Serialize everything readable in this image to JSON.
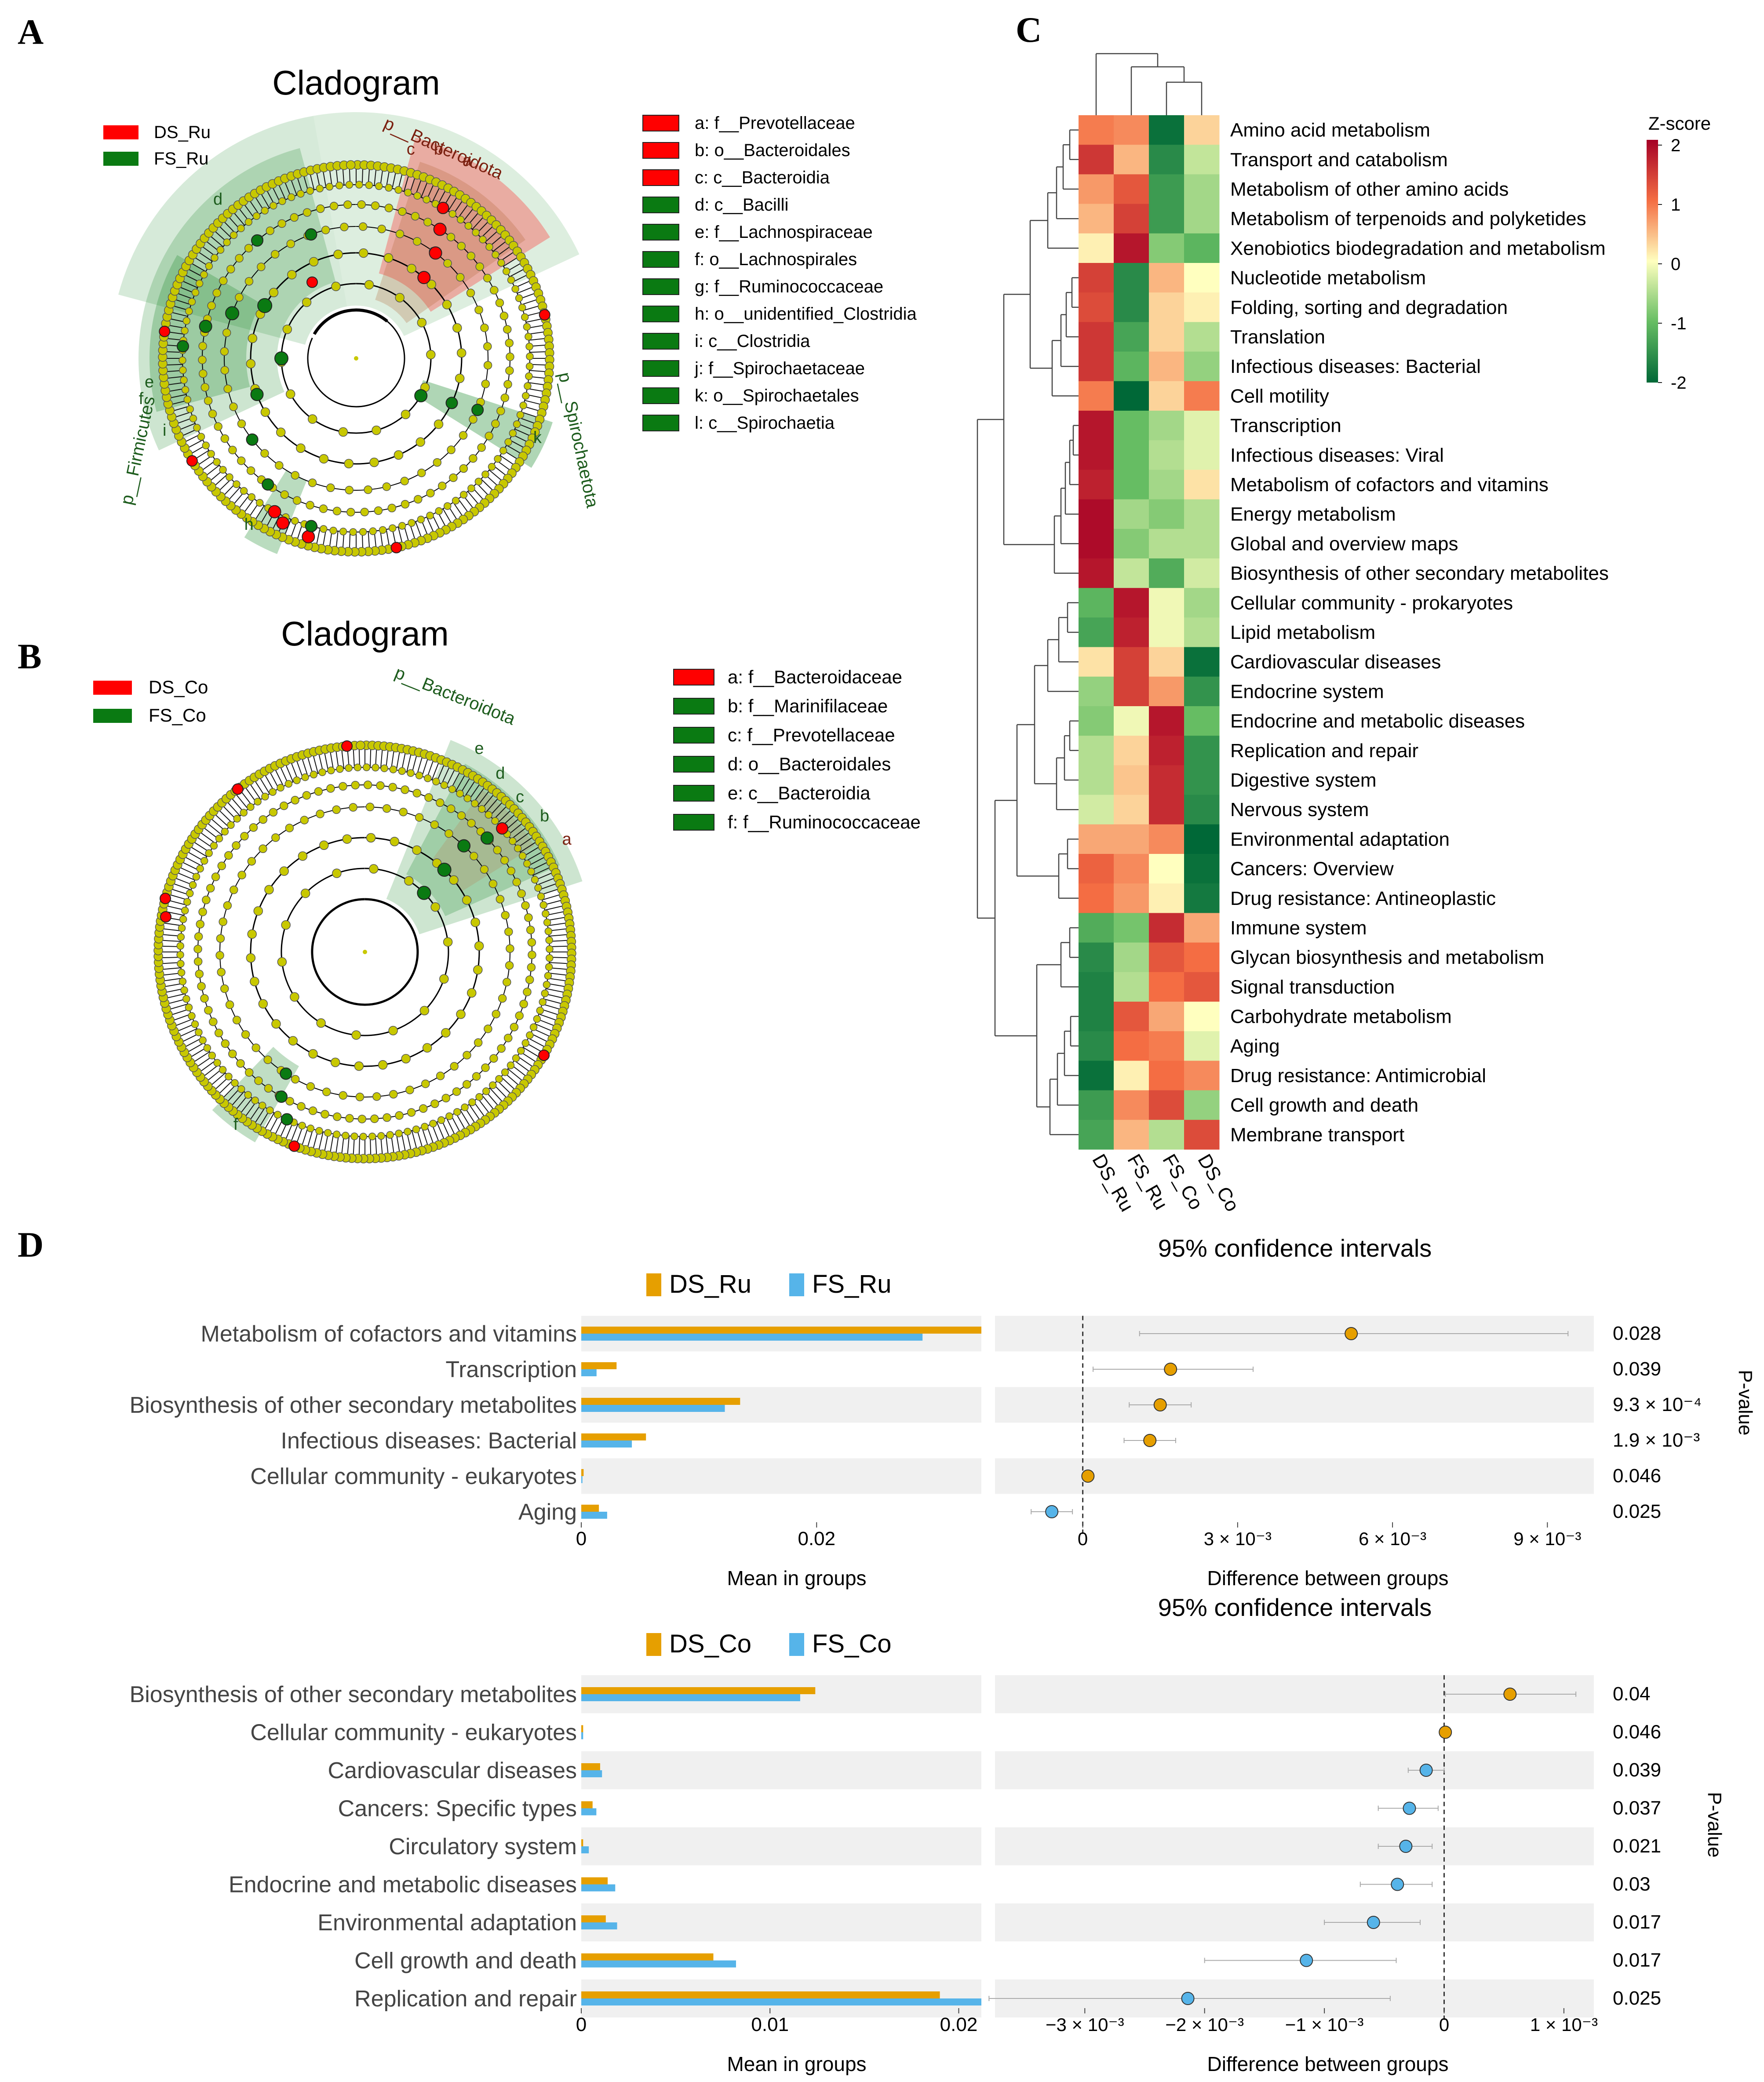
{
  "colors": {
    "red": "#ff0000",
    "green": "#0a7a12",
    "yellow": "#c8c800",
    "orange": "#e69f00",
    "blue": "#56b4e9",
    "stripe": "#f0f0f0",
    "label_brown": "#7b2010",
    "label_green": "#1d5c1d"
  },
  "panelA": {
    "letter": "A",
    "title": "Cladogram",
    "legend": [
      "DS_Ru",
      "FS_Ru"
    ],
    "clade_labels": [
      "p__Bacteroidota",
      "p__Firmicutes",
      "p__Spirochaetota"
    ],
    "node_letters": [
      "a",
      "b",
      "c",
      "d",
      "e",
      "f",
      "h",
      "i",
      "k"
    ],
    "key": [
      {
        "text": "a: f__Prevotellaceae",
        "group": "DS"
      },
      {
        "text": "b: o__Bacteroidales",
        "group": "DS"
      },
      {
        "text": "c: c__Bacteroidia",
        "group": "DS"
      },
      {
        "text": "d: c__Bacilli",
        "group": "FS"
      },
      {
        "text": "e: f__Lachnospiraceae",
        "group": "FS"
      },
      {
        "text": "f: o__Lachnospirales",
        "group": "FS"
      },
      {
        "text": "g: f__Ruminococcaceae",
        "group": "FS"
      },
      {
        "text": "h: o__unidentified_Clostridia",
        "group": "FS"
      },
      {
        "text": "i: c__Clostridia",
        "group": "FS"
      },
      {
        "text": "j: f__Spirochaetaceae",
        "group": "FS"
      },
      {
        "text": "k: o__Spirochaetales",
        "group": "FS"
      },
      {
        "text": "l: c__Spirochaetia",
        "group": "FS"
      }
    ]
  },
  "panelB": {
    "letter": "B",
    "title": "Cladogram",
    "legend": [
      "DS_Co",
      "FS_Co"
    ],
    "clade_label": "p__Bacteroidota",
    "node_letters": [
      "a",
      "b",
      "c",
      "d",
      "e",
      "f"
    ],
    "key": [
      {
        "text": "a: f__Bacteroidaceae",
        "group": "DS"
      },
      {
        "text": "b: f__Marinifilaceae",
        "group": "FS"
      },
      {
        "text": "c: f__Prevotellaceae",
        "group": "FS"
      },
      {
        "text": "d: o__Bacteroidales",
        "group": "FS"
      },
      {
        "text": "e: c__Bacteroidia",
        "group": "FS"
      },
      {
        "text": "f: f__Ruminococcaceae",
        "group": "FS"
      }
    ]
  },
  "panelC": {
    "letter": "C",
    "colorbar_title": "Z-score",
    "colorbar_ticks": [
      "2",
      "1",
      "0",
      "-1",
      "-2"
    ]
  },
  "panelD": {
    "letter": "D",
    "ci_title": "95% confidence intervals",
    "left_xlabel": "Mean in groups",
    "right_xlabel": "Difference between groups",
    "pvalue_label": "P-value",
    "top_legend": [
      "DS_Ru",
      "FS_Ru"
    ],
    "top_left_ticks": [
      "0",
      "0.02"
    ],
    "top_right_ticks": [
      "0",
      "3 × 10⁻³",
      "6 × 10⁻³",
      "9 × 10⁻³"
    ],
    "bottom_legend": [
      "DS_Co",
      "FS_Co"
    ],
    "bottom_left_ticks": [
      "0",
      "0.01",
      "0.02"
    ],
    "bottom_right_ticks": [
      "−3 × 10⁻³",
      "−2 × 10⁻³",
      "−1 × 10⁻³",
      "0",
      "1 × 10⁻³"
    ]
  },
  "chart_data": [
    {
      "type": "heatmap",
      "title": "",
      "columns": [
        "DS_Ru",
        "FS_Ru",
        "FS_Co",
        "DS_Co"
      ],
      "column_order_note": "column dendrogram joins FS_Co with DS_Co, then FS_Ru, then DS_Ru",
      "zlim": [
        -2,
        2
      ],
      "rows": [
        {
          "name": "Amino acid metabolism",
          "z": [
            0.9,
            0.8,
            -1.9,
            0.3
          ]
        },
        {
          "name": "Transport and catabolism",
          "z": [
            1.5,
            0.5,
            -1.6,
            -0.4
          ]
        },
        {
          "name": "Metabolism of other amino acids",
          "z": [
            0.7,
            1.2,
            -1.4,
            -0.6
          ]
        },
        {
          "name": "Metabolism of terpenoids and polyketides",
          "z": [
            0.5,
            1.4,
            -1.4,
            -0.6
          ]
        },
        {
          "name": "Xenobiotics biodegradation and metabolism",
          "z": [
            0.1,
            1.8,
            -0.8,
            -1.1
          ]
        },
        {
          "name": "Nucleotide metabolism",
          "z": [
            1.4,
            -1.6,
            0.5,
            0.0
          ]
        },
        {
          "name": "Folding, sorting and degradation",
          "z": [
            1.3,
            -1.6,
            0.3,
            0.1
          ]
        },
        {
          "name": "Translation",
          "z": [
            1.5,
            -1.3,
            0.3,
            -0.5
          ]
        },
        {
          "name": "Infectious diseases: Bacterial",
          "z": [
            1.5,
            -1.1,
            0.5,
            -0.7
          ]
        },
        {
          "name": "Cell motility",
          "z": [
            0.9,
            -2.0,
            0.3,
            0.9
          ]
        },
        {
          "name": "Transcription",
          "z": [
            1.8,
            -1.0,
            -0.6,
            -0.2
          ]
        },
        {
          "name": "Infectious diseases: Viral",
          "z": [
            1.8,
            -1.0,
            -0.5,
            -0.2
          ]
        },
        {
          "name": "Metabolism of cofactors and vitamins",
          "z": [
            1.7,
            -1.0,
            -0.6,
            0.2
          ]
        },
        {
          "name": "Energy metabolism",
          "z": [
            1.9,
            -0.6,
            -0.8,
            -0.5
          ]
        },
        {
          "name": "Global and overview maps",
          "z": [
            1.9,
            -0.8,
            -0.5,
            -0.5
          ]
        },
        {
          "name": "Biosynthesis of other secondary metabolites",
          "z": [
            1.8,
            -0.4,
            -1.2,
            -0.3
          ]
        },
        {
          "name": "Cellular community - prokaryotes",
          "z": [
            -1.1,
            1.8,
            -0.1,
            -0.6
          ]
        },
        {
          "name": "Lipid metabolism",
          "z": [
            -1.3,
            1.7,
            -0.1,
            -0.5
          ]
        },
        {
          "name": "Cardiovascular diseases",
          "z": [
            0.2,
            1.4,
            0.3,
            -1.9
          ]
        },
        {
          "name": "Endocrine system",
          "z": [
            -0.7,
            1.4,
            0.7,
            -1.5
          ]
        },
        {
          "name": "Endocrine and metabolic diseases",
          "z": [
            -0.8,
            -0.1,
            1.8,
            -1.0
          ]
        },
        {
          "name": "Replication and repair",
          "z": [
            -0.5,
            0.3,
            1.7,
            -1.5
          ]
        },
        {
          "name": "Digestive system",
          "z": [
            -0.5,
            0.4,
            1.6,
            -1.5
          ]
        },
        {
          "name": "Nervous system",
          "z": [
            -0.3,
            0.3,
            1.6,
            -1.6
          ]
        },
        {
          "name": "Environmental adaptation",
          "z": [
            0.6,
            0.6,
            0.8,
            -2.0
          ]
        },
        {
          "name": "Cancers: Overview",
          "z": [
            1.1,
            0.8,
            0.0,
            -1.9
          ]
        },
        {
          "name": "Drug resistance: Antineoplastic",
          "z": [
            1.0,
            0.7,
            0.1,
            -1.8
          ]
        },
        {
          "name": "Immune system",
          "z": [
            -1.2,
            -0.9,
            1.6,
            0.6
          ]
        },
        {
          "name": "Glycan biosynthesis and metabolism",
          "z": [
            -1.6,
            -0.6,
            1.2,
            1.0
          ]
        },
        {
          "name": "Signal transduction",
          "z": [
            -1.7,
            -0.5,
            1.0,
            1.2
          ]
        },
        {
          "name": "Carbohydrate metabolism",
          "z": [
            -1.7,
            1.2,
            0.6,
            0.0
          ]
        },
        {
          "name": "Aging",
          "z": [
            -1.6,
            1.0,
            0.9,
            -0.2
          ]
        },
        {
          "name": "Drug resistance: Antimicrobial",
          "z": [
            -1.9,
            0.1,
            1.0,
            0.8
          ]
        },
        {
          "name": "Cell growth and death",
          "z": [
            -1.4,
            0.8,
            1.3,
            -0.7
          ]
        },
        {
          "name": "Membrane transport",
          "z": [
            -1.3,
            0.5,
            -0.5,
            1.3
          ]
        }
      ]
    },
    {
      "type": "bar",
      "title": "DS_Ru vs FS_Ru",
      "xlabel": "Mean in groups",
      "xlim": [
        0,
        0.034
      ],
      "categories": [
        "Metabolism of cofactors and vitamins",
        "Transcription",
        "Biosynthesis of other secondary metabolites",
        "Infectious diseases: Bacterial",
        "Cellular community - eukaryotes",
        "Aging"
      ],
      "series": [
        {
          "name": "DS_Ru",
          "values": [
            0.034,
            0.003,
            0.0135,
            0.0055,
            0.0002,
            0.0015
          ]
        },
        {
          "name": "FS_Ru",
          "values": [
            0.029,
            0.0013,
            0.0122,
            0.0043,
            0.0001,
            0.0022
          ]
        }
      ]
    },
    {
      "type": "scatter",
      "title": "95% confidence intervals",
      "xlabel": "Difference between groups",
      "xlim": [
        -0.0017,
        0.0099
      ],
      "categories": [
        "Metabolism of cofactors and vitamins",
        "Transcription",
        "Biosynthesis of other secondary metabolites",
        "Infectious diseases: Bacterial",
        "Cellular community - eukaryotes",
        "Aging"
      ],
      "diff": [
        0.0052,
        0.0017,
        0.0015,
        0.0013,
        0.0001,
        -0.0006
      ],
      "ci_low": [
        0.0011,
        0.0002,
        0.0009,
        0.0008,
        0.0,
        -0.001
      ],
      "ci_high": [
        0.0094,
        0.0033,
        0.0021,
        0.0018,
        0.0002,
        -0.0002
      ],
      "p_values": [
        "0.028",
        "0.039",
        "9.3 × 10⁻⁴",
        "1.9 × 10⁻³",
        "0.046",
        "0.025"
      ]
    },
    {
      "type": "bar",
      "title": "DS_Co vs FS_Co",
      "xlabel": "Mean in groups",
      "xlim": [
        0,
        0.0212
      ],
      "categories": [
        "Biosynthesis of other secondary metabolites",
        "Cellular community - eukaryotes",
        "Cardiovascular diseases",
        "Cancers: Specific types",
        "Circulatory system",
        "Endocrine and metabolic diseases",
        "Environmental adaptation",
        "Cell growth and death",
        "Replication and repair"
      ],
      "series": [
        {
          "name": "DS_Co",
          "values": [
            0.0124,
            0.0001,
            0.001,
            0.0006,
            0.0001,
            0.0014,
            0.0013,
            0.007,
            0.019
          ]
        },
        {
          "name": "FS_Co",
          "values": [
            0.0116,
            0.0001,
            0.0011,
            0.0008,
            0.0004,
            0.0018,
            0.0019,
            0.0082,
            0.0212
          ]
        }
      ]
    },
    {
      "type": "scatter",
      "title": "95% confidence intervals",
      "xlabel": "Difference between groups",
      "xlim": [
        -0.00375,
        0.00125
      ],
      "categories": [
        "Biosynthesis of other secondary metabolites",
        "Cellular community - eukaryotes",
        "Cardiovascular diseases",
        "Cancers: Specific types",
        "Circulatory system",
        "Endocrine and metabolic diseases",
        "Environmental adaptation",
        "Cell growth and death",
        "Replication and repair"
      ],
      "diff": [
        0.00055,
        1e-05,
        -0.00015,
        -0.00029,
        -0.00032,
        -0.00039,
        -0.00059,
        -0.00115,
        -0.00214
      ],
      "ci_low": [
        1e-05,
        -3e-05,
        -0.0003,
        -0.00055,
        -0.00055,
        -0.0007,
        -0.001,
        -0.002,
        -0.0038
      ],
      "ci_high": [
        0.0011,
        5e-05,
        0.0,
        -5e-05,
        -0.0001,
        -0.0001,
        -0.0002,
        -0.0004,
        -0.00045
      ],
      "p_values": [
        "0.04",
        "0.046",
        "0.039",
        "0.037",
        "0.021",
        "0.03",
        "0.017",
        "0.017",
        "0.025"
      ]
    }
  ]
}
